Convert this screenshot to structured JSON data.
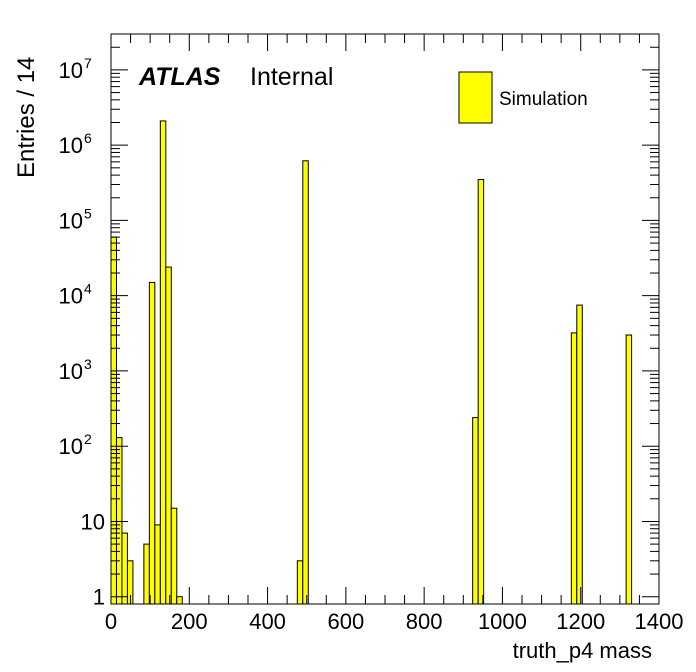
{
  "chart_data": {
    "type": "bar",
    "style": "histogram",
    "title": "",
    "xlabel": "truth_p4 mass",
    "ylabel": "Entries / 14",
    "xlim": [
      0,
      1400
    ],
    "ylim": [
      0.8,
      30000000
    ],
    "yscale": "log",
    "bin_width": 14,
    "grid": false,
    "legend_position": "top-right",
    "fill_color": "#ffff00",
    "edge_color": "#000000",
    "atlas_label": "ATLAS",
    "atlas_status": "Internal",
    "x_ticks": [
      "0",
      "200",
      "400",
      "600",
      "800",
      "1000",
      "1200",
      "1400"
    ],
    "y_ticks": [
      {
        "value": 1,
        "mantissa": "1",
        "exp": ""
      },
      {
        "value": 10,
        "mantissa": "10",
        "exp": ""
      },
      {
        "value": 100,
        "mantissa": "10",
        "exp": "2"
      },
      {
        "value": 1000,
        "mantissa": "10",
        "exp": "3"
      },
      {
        "value": 10000,
        "mantissa": "10",
        "exp": "4"
      },
      {
        "value": 100000,
        "mantissa": "10",
        "exp": "5"
      },
      {
        "value": 1000000,
        "mantissa": "10",
        "exp": "6"
      },
      {
        "value": 10000000,
        "mantissa": "10",
        "exp": "7"
      }
    ],
    "series": [
      {
        "name": "Simulation",
        "bins": [
          {
            "x0": 0,
            "value": 60000
          },
          {
            "x0": 14,
            "value": 130
          },
          {
            "x0": 28,
            "value": 7
          },
          {
            "x0": 42,
            "value": 3
          },
          {
            "x0": 84,
            "value": 5
          },
          {
            "x0": 98,
            "value": 15000
          },
          {
            "x0": 112,
            "value": 9
          },
          {
            "x0": 126,
            "value": 2100000
          },
          {
            "x0": 140,
            "value": 24000
          },
          {
            "x0": 154,
            "value": 15
          },
          {
            "x0": 168,
            "value": 1
          },
          {
            "x0": 476,
            "value": 3
          },
          {
            "x0": 490,
            "value": 620000
          },
          {
            "x0": 924,
            "value": 240
          },
          {
            "x0": 938,
            "value": 350000
          },
          {
            "x0": 1176,
            "value": 3200
          },
          {
            "x0": 1190,
            "value": 7500
          },
          {
            "x0": 1316,
            "value": 3000
          }
        ]
      }
    ]
  }
}
